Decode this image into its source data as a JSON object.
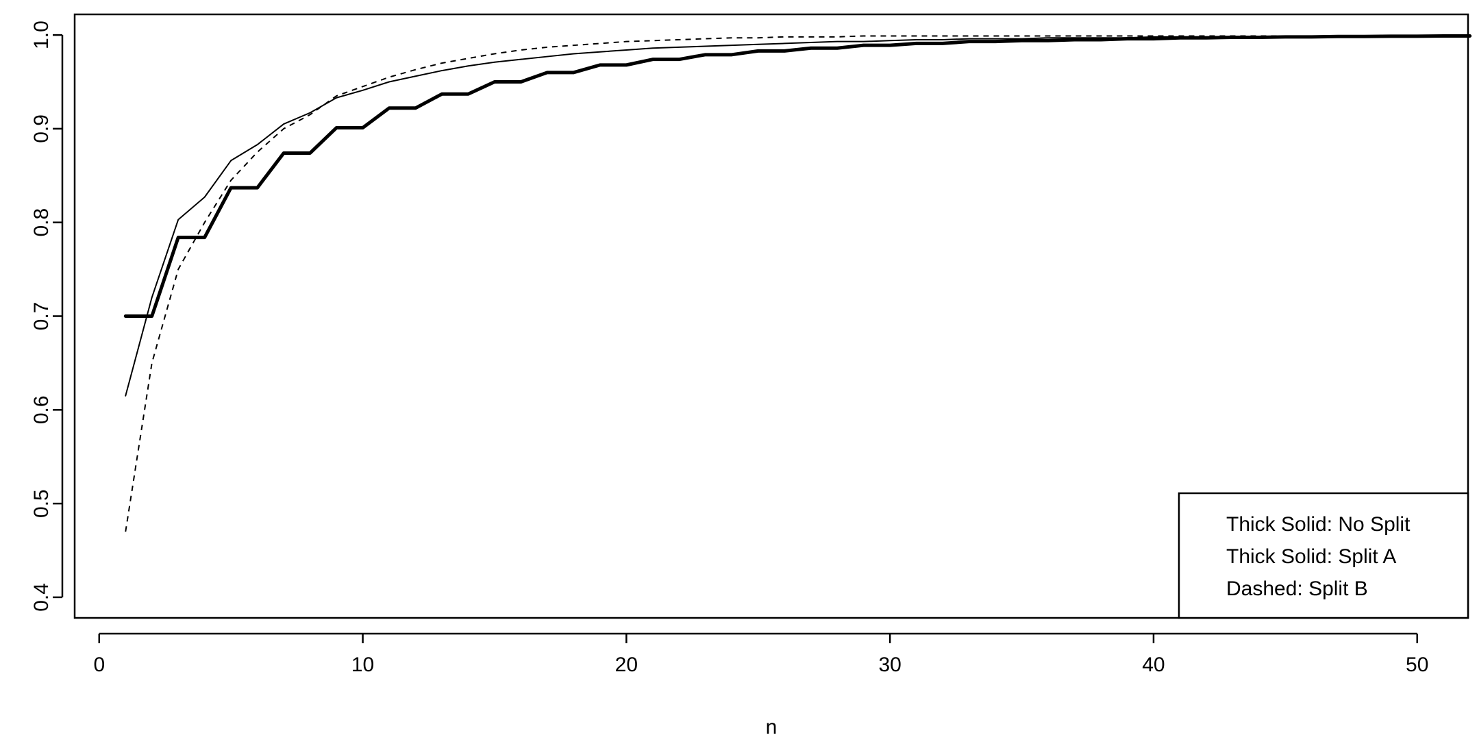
{
  "chart_data": {
    "type": "line",
    "x_label": "n",
    "x": [
      1,
      2,
      3,
      4,
      5,
      6,
      7,
      8,
      9,
      10,
      11,
      12,
      13,
      14,
      15,
      16,
      17,
      18,
      19,
      20,
      21,
      22,
      23,
      24,
      25,
      26,
      27,
      28,
      29,
      30,
      31,
      32,
      33,
      34,
      35,
      36,
      37,
      38,
      39,
      40,
      41,
      42,
      43,
      44,
      45,
      46,
      47,
      48,
      49,
      50,
      51,
      52
    ],
    "xlim": [
      -0.93,
      51.93
    ],
    "xticks": [
      0,
      10,
      20,
      30,
      40,
      50
    ],
    "ylim": [
      0.378,
      1.022
    ],
    "yticks": [
      {
        "value": 0.4,
        "label": "0.4"
      },
      {
        "value": 0.5,
        "label": "0.5"
      },
      {
        "value": 0.6,
        "label": "0.6"
      },
      {
        "value": 0.7,
        "label": "0.7"
      },
      {
        "value": 0.8,
        "label": "0.8"
      },
      {
        "value": 0.9,
        "label": "0.9"
      },
      {
        "value": 1.0,
        "label": "1.0"
      }
    ],
    "legend_position": "bottom-right",
    "series": [
      {
        "name": "Thick Solid: No Split",
        "color": "#000000",
        "width": 5,
        "dashed": false,
        "values": [
          0.7,
          0.7,
          0.784,
          0.784,
          0.837,
          0.837,
          0.874,
          0.874,
          0.901,
          0.901,
          0.922,
          0.922,
          0.937,
          0.937,
          0.95,
          0.95,
          0.96,
          0.96,
          0.968,
          0.968,
          0.974,
          0.974,
          0.979,
          0.979,
          0.983,
          0.983,
          0.986,
          0.986,
          0.989,
          0.989,
          0.991,
          0.991,
          0.993,
          0.993,
          0.994,
          0.994,
          0.995,
          0.995,
          0.996,
          0.996,
          0.997,
          0.997,
          0.9975,
          0.9975,
          0.998,
          0.998,
          0.9984,
          0.9984,
          0.9987,
          0.9987,
          0.999,
          0.999
        ]
      },
      {
        "name": "Thick Solid: Split A",
        "color": "#000000",
        "width": 2,
        "dashed": false,
        "values": [
          0.615,
          0.72,
          0.803,
          0.827,
          0.866,
          0.883,
          0.905,
          0.917,
          0.933,
          0.941,
          0.95,
          0.956,
          0.962,
          0.967,
          0.971,
          0.974,
          0.977,
          0.98,
          0.982,
          0.984,
          0.986,
          0.987,
          0.988,
          0.989,
          0.99,
          0.991,
          0.992,
          0.993,
          0.993,
          0.994,
          0.995,
          0.995,
          0.996,
          0.996,
          0.996,
          0.997,
          0.997,
          0.997,
          0.997,
          0.998,
          0.998,
          0.998,
          0.998,
          0.998,
          0.998,
          0.999,
          0.999,
          0.999,
          0.999,
          0.999,
          0.999,
          0.999
        ]
      },
      {
        "name": "Dashed: Split B",
        "color": "#000000",
        "width": 2,
        "dashed": true,
        "values": [
          0.47,
          0.65,
          0.75,
          0.8,
          0.845,
          0.875,
          0.9,
          0.915,
          0.935,
          0.945,
          0.955,
          0.963,
          0.97,
          0.975,
          0.98,
          0.984,
          0.987,
          0.989,
          0.991,
          0.993,
          0.994,
          0.995,
          0.996,
          0.997,
          0.997,
          0.998,
          0.998,
          0.998,
          0.999,
          0.999,
          0.999,
          0.999,
          0.999,
          0.999,
          0.999,
          0.999,
          0.999,
          0.999,
          0.999,
          0.999,
          0.999,
          0.999,
          0.999,
          0.999,
          0.999,
          0.999,
          0.999,
          0.999,
          0.999,
          0.999,
          0.999,
          0.999
        ]
      }
    ]
  }
}
